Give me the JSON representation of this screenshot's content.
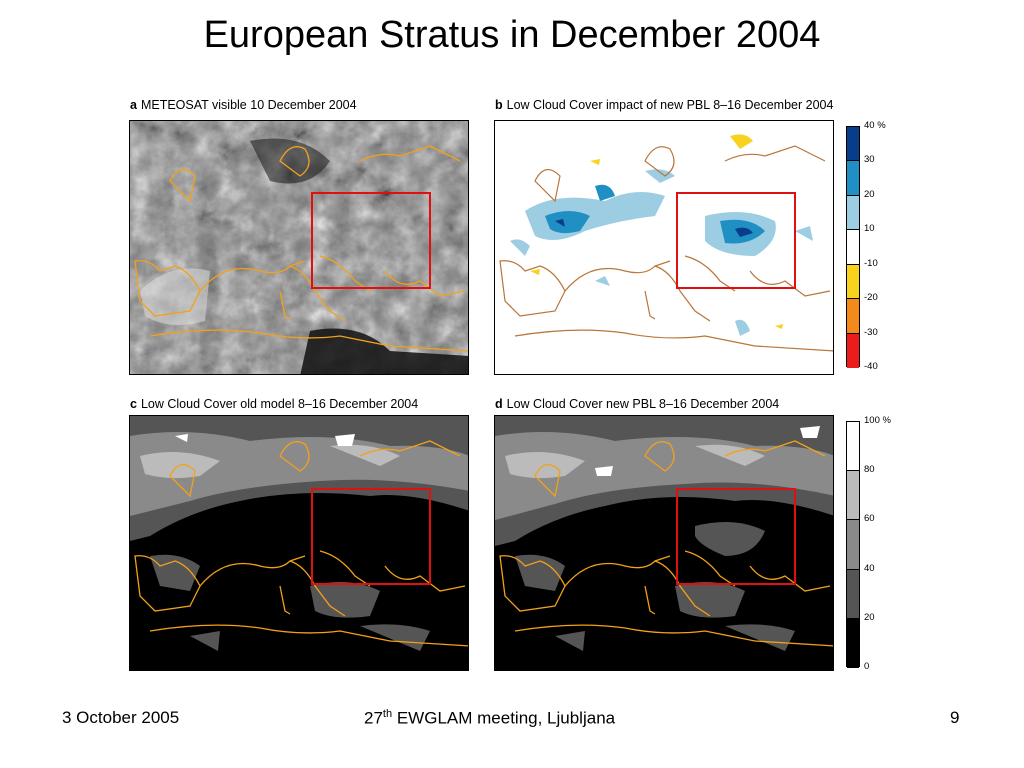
{
  "slide": {
    "title": "European Stratus in December 2004",
    "footer_left": "3 October 2005",
    "footer_center_prefix": "27",
    "footer_center_sup": "th",
    "footer_center_suffix": " EWGLAM meeting, Ljubljana",
    "footer_right": "9"
  },
  "panels": {
    "a": {
      "letter": "a",
      "label": "METEOSAT visible 10 December 2004"
    },
    "b": {
      "letter": "b",
      "label": "Low Cloud Cover impact of new PBL 8–16 December 2004"
    },
    "c": {
      "letter": "c",
      "label": "Low Cloud Cover old model 8–16 December 2004"
    },
    "d": {
      "letter": "d",
      "label": "Low Cloud Cover new PBL 8–16 December 2004"
    }
  },
  "colorbar_top": {
    "ticks": [
      "40 %",
      "30",
      "20",
      "10",
      "-10",
      "-20",
      "-30",
      "-40"
    ],
    "colors": [
      "#0a3c8c",
      "#1f8fc4",
      "#9dcde2",
      "#ffffff",
      "#f7d21e",
      "#f38a1a",
      "#ea1c1c"
    ]
  },
  "colorbar_bottom": {
    "ticks": [
      "100 %",
      "80",
      "60",
      "40",
      "20",
      "0"
    ],
    "colors": [
      "#ffffff",
      "#bbbbbb",
      "#8a8a8a",
      "#555555",
      "#000000"
    ]
  },
  "colors": {
    "coast": "#f2a11a",
    "coast_b": "#b8763a",
    "box": "#e01010"
  }
}
